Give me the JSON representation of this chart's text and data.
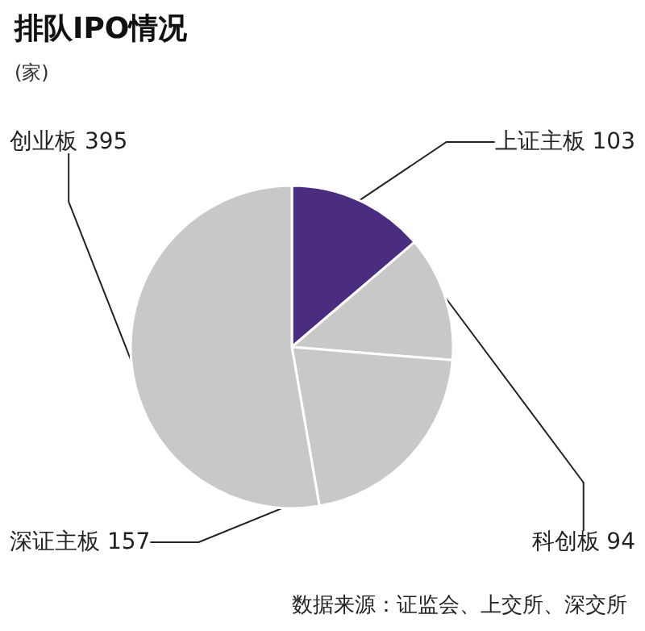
{
  "chart_data": {
    "type": "pie",
    "title": "排队IPO情况",
    "subtitle": "(家)",
    "categories": [
      "上证主板",
      "科创板",
      "深证主板",
      "创业板"
    ],
    "values": [
      103,
      94,
      157,
      395
    ],
    "colors": [
      "#4b2d7f",
      "#c8c8c8",
      "#c8c8c8",
      "#c8c8c8"
    ],
    "data_labels": true,
    "legend": false,
    "annotations": [
      "数据来源：证监会、上交所、深交所"
    ]
  }
}
